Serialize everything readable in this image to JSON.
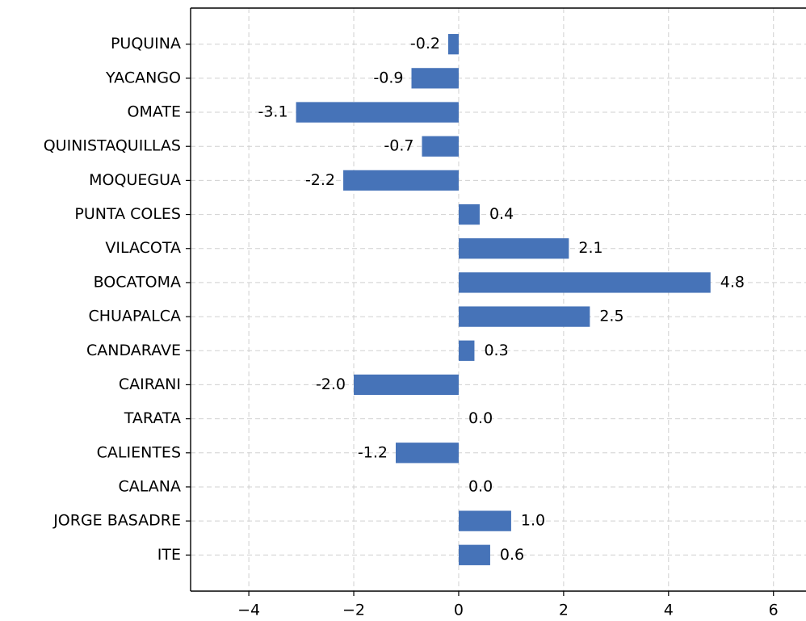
{
  "chart_data": {
    "type": "barh",
    "categories": [
      "PUQUINA",
      "YACANGO",
      "OMATE",
      "QUINISTAQUILLAS",
      "MOQUEGUA",
      "PUNTA COLES",
      "VILACOTA",
      "BOCATOMA",
      "CHUAPALCA",
      "CANDARAVE",
      "CAIRANI",
      "TARATA",
      "CALIENTES",
      "CALANA",
      "JORGE BASADRE",
      "ITE"
    ],
    "values": [
      -0.2,
      -0.9,
      -3.1,
      -0.7,
      -2.2,
      0.4,
      2.1,
      4.8,
      2.5,
      0.3,
      -2.0,
      0.0,
      -1.2,
      0.0,
      1.0,
      0.6
    ],
    "value_labels": [
      "-0.2",
      "-0.9",
      "-3.1",
      "-0.7",
      "-2.2",
      "0.4",
      "2.1",
      "4.8",
      "2.5",
      "0.3",
      "-2.0",
      "0.0",
      "-1.2",
      "0.0",
      "1.0",
      "0.6"
    ],
    "color": "#4673b8",
    "xlim": [
      -5.11,
      6.62
    ],
    "xticks": [
      {
        "value": -4,
        "label": "−4"
      },
      {
        "value": -2,
        "label": "−2"
      },
      0,
      2,
      4,
      6
    ],
    "grid": true
  }
}
